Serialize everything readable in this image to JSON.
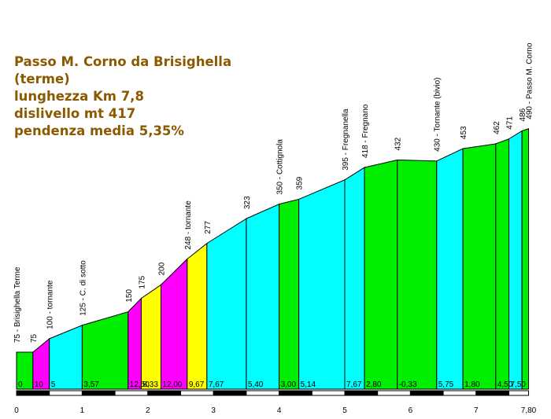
{
  "info": {
    "title_line1": "Passo M. Corno da Brisighella",
    "title_line2": "(terme)",
    "length": "lunghezza Km 7,8",
    "climb": "dislivello mt 417",
    "gradient": "pendenza media 5,35%"
  },
  "chart_data": {
    "type": "area",
    "title": "Passo M. Corno da Brisighella (terme)",
    "xlabel": "",
    "ylabel": "",
    "xlim": [
      0,
      7.8
    ],
    "ylim": [
      0,
      500
    ],
    "km_ticks": [
      "0",
      "1",
      "2",
      "3",
      "4",
      "5",
      "6",
      "7",
      "7,80"
    ],
    "grid": false,
    "points": [
      {
        "km": 0.0,
        "alt": 75,
        "label": "75 - Brisighella Terme"
      },
      {
        "km": 0.25,
        "alt": 75,
        "label": "75"
      },
      {
        "km": 0.5,
        "alt": 100,
        "label": "100 - tornante"
      },
      {
        "km": 1.0,
        "alt": 125,
        "label": "125 - C. di sotto"
      },
      {
        "km": 1.7,
        "alt": 150,
        "label": "150"
      },
      {
        "km": 1.9,
        "alt": 175,
        "label": "175"
      },
      {
        "km": 2.2,
        "alt": 200,
        "label": "200"
      },
      {
        "km": 2.6,
        "alt": 248,
        "label": "248 - tornante"
      },
      {
        "km": 2.9,
        "alt": 277,
        "label": "277"
      },
      {
        "km": 3.5,
        "alt": 323,
        "label": "323"
      },
      {
        "km": 4.0,
        "alt": 350,
        "label": "350 - Cottignola"
      },
      {
        "km": 4.3,
        "alt": 359,
        "label": "359"
      },
      {
        "km": 5.0,
        "alt": 395,
        "label": "395 - Fregnanella"
      },
      {
        "km": 5.3,
        "alt": 418,
        "label": "418 - Fregnano"
      },
      {
        "km": 5.8,
        "alt": 432,
        "label": "432"
      },
      {
        "km": 6.4,
        "alt": 430,
        "label": "430 - Tornante (bivio)"
      },
      {
        "km": 6.8,
        "alt": 453,
        "label": "453"
      },
      {
        "km": 7.3,
        "alt": 462,
        "label": "462"
      },
      {
        "km": 7.5,
        "alt": 471,
        "label": "471"
      },
      {
        "km": 7.7,
        "alt": 486,
        "label": "486"
      },
      {
        "km": 7.8,
        "alt": 490,
        "label": "490 - Passo M. Corno"
      }
    ],
    "segments": [
      {
        "gradient": "0",
        "color": "#00ee00"
      },
      {
        "gradient": "10",
        "color": "#ff00ff"
      },
      {
        "gradient": "5",
        "color": "#00ffff"
      },
      {
        "gradient": "3,57",
        "color": "#00ee00"
      },
      {
        "gradient": "12,50",
        "color": "#ff00ff"
      },
      {
        "gradient": "8,33",
        "color": "#ffff00"
      },
      {
        "gradient": "12,00",
        "color": "#ff00ff"
      },
      {
        "gradient": "9,67",
        "color": "#ffff00"
      },
      {
        "gradient": "7,67",
        "color": "#00ffff"
      },
      {
        "gradient": "5,40",
        "color": "#00ffff"
      },
      {
        "gradient": "3,00",
        "color": "#00ee00"
      },
      {
        "gradient": "5,14",
        "color": "#00ffff"
      },
      {
        "gradient": "7,67",
        "color": "#00ffff"
      },
      {
        "gradient": "2,80",
        "color": "#00ee00"
      },
      {
        "gradient": "-0,33",
        "color": "#00ee00"
      },
      {
        "gradient": "5,75",
        "color": "#00ffff"
      },
      {
        "gradient": "1,80",
        "color": "#00ee00"
      },
      {
        "gradient": "4,50",
        "color": "#00ee00"
      },
      {
        "gradient": "7,50",
        "color": "#00ffff"
      },
      {
        "gradient": "",
        "color": "#00ee00"
      }
    ]
  }
}
